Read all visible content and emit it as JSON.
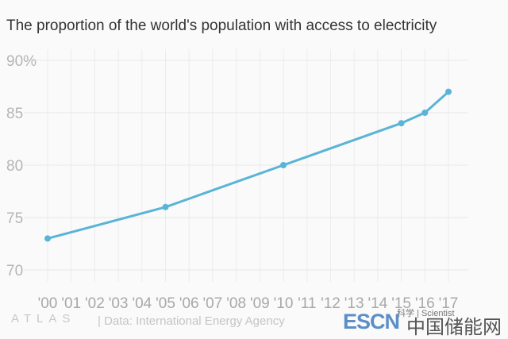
{
  "chart_data": {
    "type": "line",
    "title": "The proportion of the world's population with access to electricity",
    "x": [
      2000,
      2005,
      2010,
      2015,
      2016,
      2017
    ],
    "values": [
      73,
      76,
      80,
      84,
      85,
      87
    ],
    "xtick_labels": [
      "'00",
      "'01",
      "'02",
      "'03",
      "'04",
      "'05",
      "'06",
      "'07",
      "'08",
      "'09",
      "'10",
      "'11",
      "'12",
      "'13",
      "'14",
      "'15",
      "'16",
      "'17"
    ],
    "ytick_values": [
      70,
      75,
      80,
      85,
      90
    ],
    "ytick_labels": [
      "70",
      "75",
      "80",
      "85",
      "90%"
    ],
    "xlim": [
      2000,
      2017
    ],
    "ylim": [
      70,
      90
    ],
    "grid": true,
    "line_color": "#5ab4d6"
  },
  "footer": {
    "brand": "ATLAS",
    "source": "| Data: International Energy Agency",
    "watermark": "科学 | Scientist",
    "logo_latin": "ESCN",
    "logo_cn": "中国储能网"
  }
}
